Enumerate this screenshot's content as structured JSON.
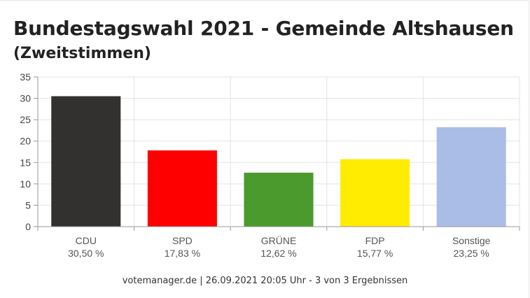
{
  "header": {
    "title": "Bundestagswahl 2021 - Gemeinde Altshausen",
    "subtitle": "(Zweitstimmen)"
  },
  "footer": {
    "text": "votemanager.de | 26.09.2021 20:05 Uhr - 3 von 3 Ergebnissen"
  },
  "chart_data": {
    "type": "bar",
    "title": "Bundestagswahl 2021 - Gemeinde Altshausen",
    "subtitle": "(Zweitstimmen)",
    "categories": [
      "CDU",
      "SPD",
      "GRÜNE",
      "FDP",
      "Sonstige"
    ],
    "values": [
      30.5,
      17.83,
      12.62,
      15.77,
      23.25
    ],
    "value_labels": [
      "30,50 %",
      "17,83 %",
      "12,62 %",
      "15,77 %",
      "23,25 %"
    ],
    "colors": [
      "#333130",
      "#ff0000",
      "#4a9a2e",
      "#ffec00",
      "#aabde6"
    ],
    "ylim": [
      0,
      35
    ],
    "yticks": [
      0,
      5,
      10,
      15,
      20,
      25,
      30,
      35
    ],
    "grid": true,
    "legend": "none"
  }
}
